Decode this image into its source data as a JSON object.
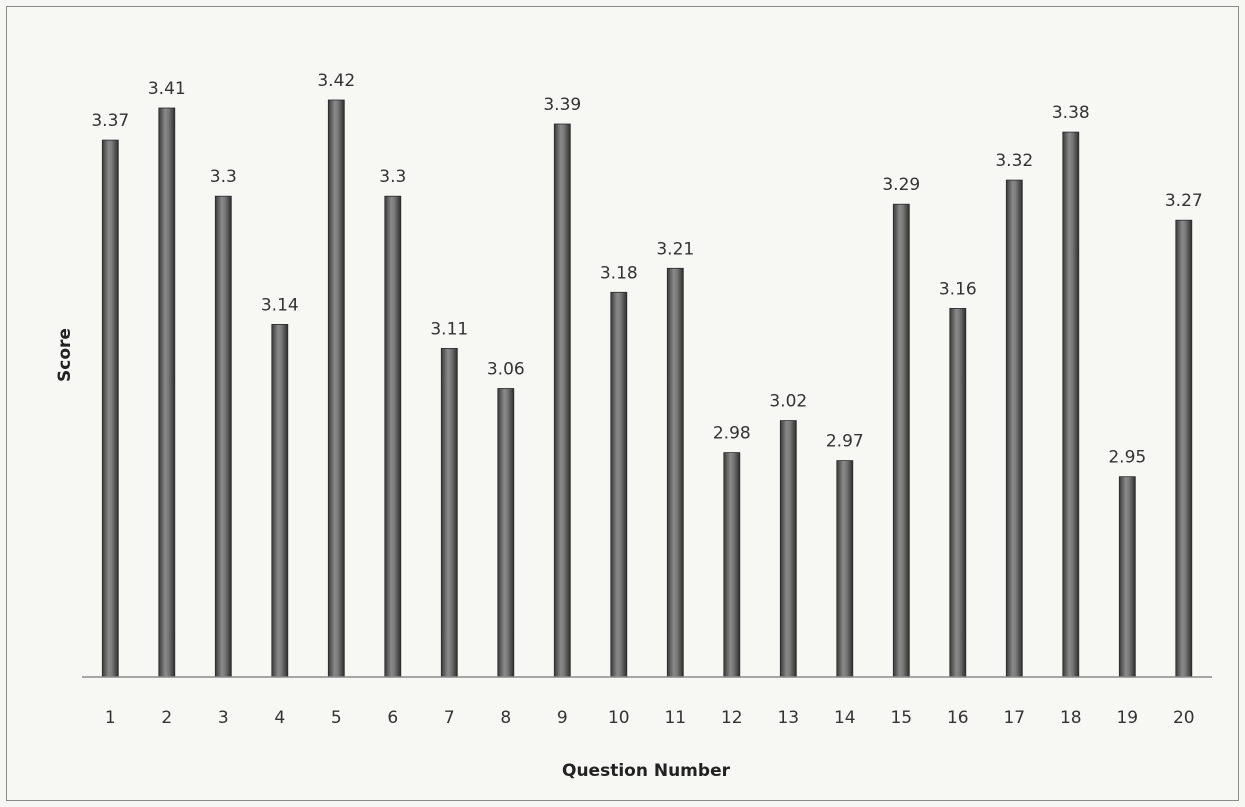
{
  "chart_data": {
    "type": "bar",
    "title": "",
    "xlabel": "Question Number",
    "ylabel": "Score",
    "categories": [
      "1",
      "2",
      "3",
      "4",
      "5",
      "6",
      "7",
      "8",
      "9",
      "10",
      "11",
      "12",
      "13",
      "14",
      "15",
      "16",
      "17",
      "18",
      "19",
      "20"
    ],
    "values": [
      3.37,
      3.41,
      3.3,
      3.14,
      3.42,
      3.3,
      3.11,
      3.06,
      3.39,
      3.18,
      3.21,
      2.98,
      3.02,
      2.97,
      3.29,
      3.16,
      3.32,
      3.38,
      2.95,
      3.27
    ],
    "data_labels": [
      "3.37",
      "3.41",
      "3.3",
      "3.14",
      "3.42",
      "3.3",
      "3.11",
      "3.06",
      "3.39",
      "3.18",
      "3.21",
      "2.98",
      "3.02",
      "2.97",
      "3.29",
      "3.16",
      "3.32",
      "3.38",
      "2.95",
      "3.27"
    ],
    "ylim": [
      2.7,
      3.42
    ],
    "grid": false,
    "legend": "none",
    "bar_color": "#6e6e6e"
  }
}
